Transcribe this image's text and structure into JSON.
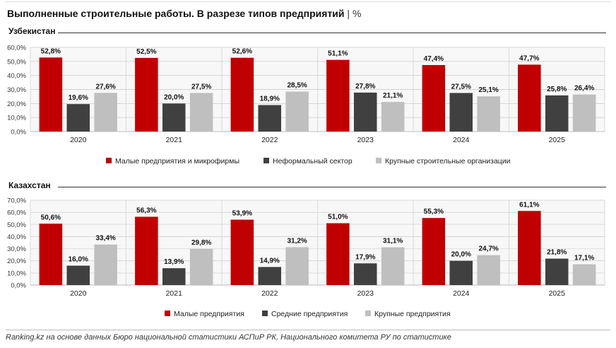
{
  "title": {
    "main": "Выполненные строительные работы. В разрезе типов предприятий",
    "separator": "|",
    "unit": "%"
  },
  "source": "Ranking.kz на основе данных Бюро национальной статистики АСПиР РК, Национального комитета РУ по статистике",
  "colors": {
    "series1": "#c00000",
    "series2": "#404040",
    "series3": "#bfbfbf"
  },
  "chart_data": [
    {
      "type": "bar",
      "title": "Узбекистан",
      "categories": [
        "2020",
        "2021",
        "2022",
        "2023",
        "2024",
        "2025"
      ],
      "ylim": [
        0,
        60
      ],
      "yticks": [
        "0,0%",
        "10,0%",
        "20,0%",
        "30,0%",
        "40,0%",
        "50,0%",
        "60,0%"
      ],
      "grid": true,
      "legend_position": "bottom",
      "series": [
        {
          "name": "Малые предприятия и микрофирмы",
          "values": [
            52.8,
            52.5,
            52.6,
            51.1,
            47.4,
            47.7
          ],
          "labels": [
            "52,8%",
            "52,5%",
            "52,6%",
            "51,1%",
            "47,4%",
            "47,7%"
          ]
        },
        {
          "name": "Неформальный сектор",
          "values": [
            19.6,
            20.0,
            18.9,
            27.8,
            27.5,
            25.8
          ],
          "labels": [
            "19,6%",
            "20,0%",
            "18,9%",
            "27,8%",
            "27,5%",
            "25,8%"
          ]
        },
        {
          "name": "Крупные строительные организации",
          "values": [
            27.6,
            27.5,
            28.5,
            21.1,
            25.1,
            26.4
          ],
          "labels": [
            "27,6%",
            "27,5%",
            "28,5%",
            "21,1%",
            "25,1%",
            "26,4%"
          ]
        }
      ]
    },
    {
      "type": "bar",
      "title": "Казахстан",
      "categories": [
        "2020",
        "2021",
        "2022",
        "2023",
        "2024",
        "2025"
      ],
      "ylim": [
        0,
        70
      ],
      "yticks": [
        "0,0%",
        "10,0%",
        "20,0%",
        "30,0%",
        "40,0%",
        "50,0%",
        "60,0%",
        "70,0%"
      ],
      "grid": true,
      "legend_position": "bottom",
      "series": [
        {
          "name": "Малые предприятия",
          "values": [
            50.6,
            56.3,
            53.9,
            51.0,
            55.3,
            61.1
          ],
          "labels": [
            "50,6%",
            "56,3%",
            "53,9%",
            "51,0%",
            "55,3%",
            "61,1%"
          ]
        },
        {
          "name": "Средние предприятия",
          "values": [
            16.0,
            13.9,
            14.9,
            17.9,
            20.0,
            21.8
          ],
          "labels": [
            "16,0%",
            "13,9%",
            "14,9%",
            "17,9%",
            "20,0%",
            "21,8%"
          ]
        },
        {
          "name": "Крупные предприятия",
          "values": [
            33.4,
            29.8,
            31.2,
            31.1,
            24.7,
            17.1
          ],
          "labels": [
            "33,4%",
            "29,8%",
            "31,2%",
            "31,1%",
            "24,7%",
            "17,1%"
          ]
        }
      ]
    }
  ]
}
